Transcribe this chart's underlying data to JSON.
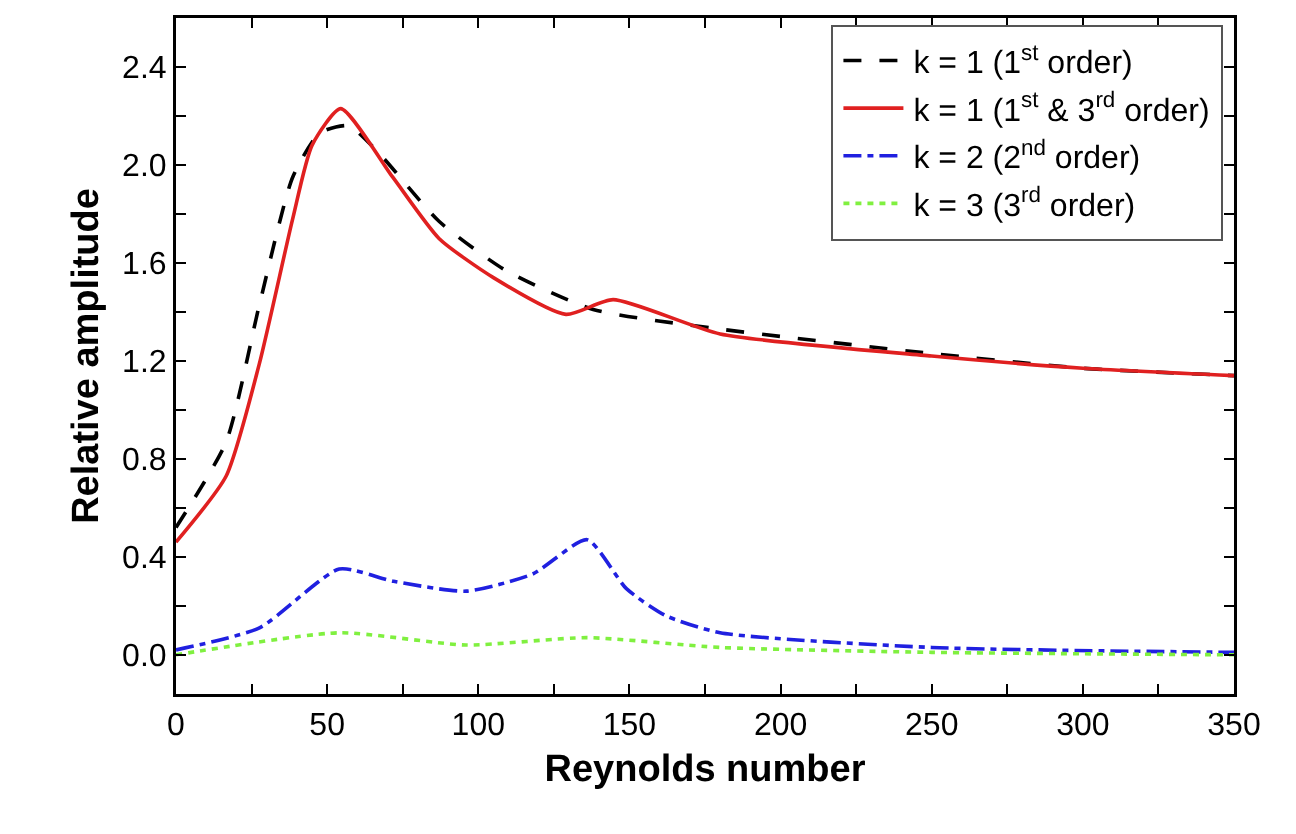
{
  "chart_data": {
    "type": "line",
    "xlabel": "Reynolds number",
    "ylabel": "Relative amplitude",
    "xlim": [
      0,
      350
    ],
    "ylim": [
      -0.16,
      2.6
    ],
    "xticks": [
      0,
      {
        "value": 25,
        "label": null
      },
      50,
      {
        "value": 75,
        "label": null
      },
      100,
      {
        "value": 125,
        "label": null
      },
      150,
      {
        "value": 175,
        "label": null
      },
      200,
      {
        "value": 225,
        "label": null
      },
      250,
      {
        "value": 275,
        "label": null
      },
      300,
      {
        "value": 325,
        "label": null
      },
      350
    ],
    "yticks": [
      {
        "value": 0,
        "label": "0.0"
      },
      {
        "value": 0.2,
        "label": null
      },
      {
        "value": 0.4,
        "label": "0.4"
      },
      {
        "value": 0.6,
        "label": null
      },
      {
        "value": 0.8,
        "label": "0.8"
      },
      {
        "value": 1.0,
        "label": null
      },
      {
        "value": 1.2,
        "label": "1.2"
      },
      {
        "value": 1.4,
        "label": null
      },
      {
        "value": 1.6,
        "label": "1.6"
      },
      {
        "value": 1.8,
        "label": null
      },
      {
        "value": 2.0,
        "label": "2.0"
      },
      {
        "value": 2.2,
        "label": null
      },
      {
        "value": 2.4,
        "label": "2.4"
      }
    ],
    "grid": false,
    "legend": "top right",
    "marker": "none",
    "series": [
      {
        "name": "k = 1 (1$^{st}$ order)",
        "color": "#000000",
        "line_style": "dashed",
        "x": [
          0,
          16.6,
          27.6,
          38.6,
          47.5,
          57,
          67,
          87,
          109,
          138,
          180,
          250,
          300,
          350
        ],
        "values": [
          0.52,
          0.87,
          1.43,
          1.95,
          2.13,
          2.16,
          2.05,
          1.77,
          1.57,
          1.41,
          1.33,
          1.23,
          1.17,
          1.14
        ]
      },
      {
        "name": "k = 1 (1$^{st}$ & 3$^{rd}$ order)",
        "color": "#e02020",
        "line_style": "solid",
        "x": [
          0,
          16.6,
          27.6,
          38.6,
          45,
          54.5,
          71.7,
          87,
          105,
          129,
          144.6,
          180,
          250,
          300,
          350
        ],
        "values": [
          0.46,
          0.73,
          1.19,
          1.78,
          2.08,
          2.23,
          1.95,
          1.7,
          1.54,
          1.39,
          1.45,
          1.31,
          1.22,
          1.17,
          1.14
        ]
      },
      {
        "name": "k = 2 (2$^{nd}$ order)",
        "color": "#2020e0",
        "line_style": "dashdot",
        "x": [
          0,
          27.6,
          54,
          72,
          96,
          118,
          136,
          149,
          162,
          180,
          250,
          350
        ],
        "values": [
          0.02,
          0.11,
          0.35,
          0.3,
          0.26,
          0.33,
          0.47,
          0.27,
          0.16,
          0.09,
          0.03,
          0.01
        ]
      },
      {
        "name": "k = 3 (3$^{rd}$ order)",
        "color": "#80f040",
        "line_style": "dotted",
        "x": [
          0,
          54,
          96,
          136,
          180,
          250,
          350
        ],
        "values": [
          0.0,
          0.09,
          0.04,
          0.07,
          0.03,
          0.01,
          0.0
        ]
      }
    ]
  }
}
